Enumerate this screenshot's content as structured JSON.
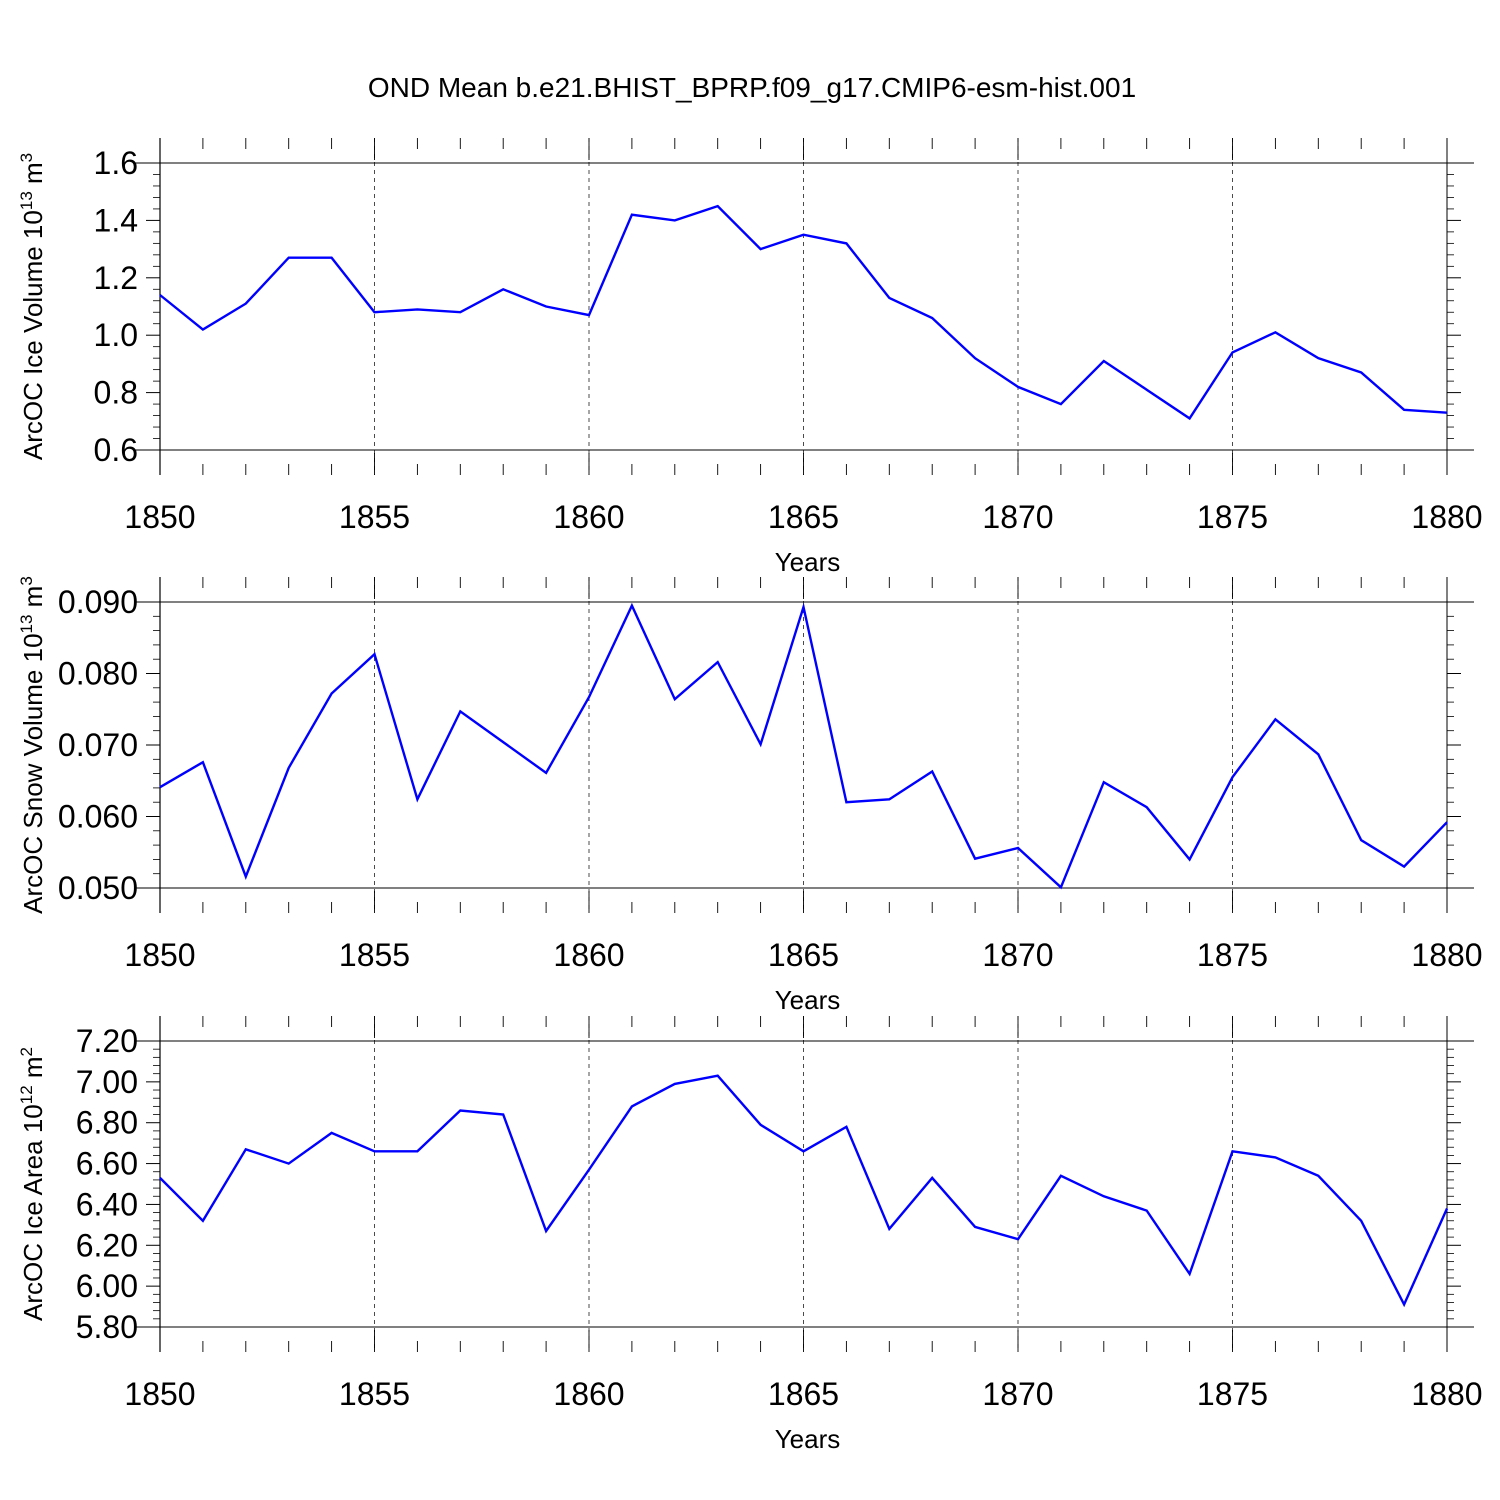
{
  "title": "OND Mean b.e21.BHIST_BPRP.f09_g17.CMIP6-esm-hist.001",
  "colors": {
    "series": "#0000ff",
    "axis": "#000000",
    "grid": "#000000"
  },
  "chart_data": [
    {
      "type": "line",
      "title": "",
      "xlabel": "Years",
      "ylabel": "ArcOC Ice Volume 10",
      "ylabel_exp": "13",
      "ylabel_unit": " m",
      "ylabel_unit_exp": "3",
      "xlim": [
        1850,
        1880
      ],
      "ylim": [
        0.6,
        1.6
      ],
      "yticks": [
        0.6,
        0.8,
        1.0,
        1.2,
        1.4,
        1.6
      ],
      "ytick_labels": [
        "0.6",
        "0.8",
        "1.0",
        "1.2",
        "1.4",
        "1.6"
      ],
      "xticks": [
        1850,
        1855,
        1860,
        1865,
        1870,
        1875,
        1880
      ],
      "xtick_labels": [
        "1850",
        "1855",
        "1860",
        "1865",
        "1870",
        "1875",
        "1880"
      ],
      "grid": "vertical-dashed-at-major-x",
      "x": [
        1850,
        1851,
        1852,
        1853,
        1854,
        1855,
        1856,
        1857,
        1858,
        1859,
        1860,
        1861,
        1862,
        1863,
        1864,
        1865,
        1866,
        1867,
        1868,
        1869,
        1870,
        1871,
        1872,
        1873,
        1874,
        1875,
        1876,
        1877,
        1878,
        1879,
        1880
      ],
      "series": [
        {
          "values": [
            1.14,
            1.02,
            1.11,
            1.27,
            1.27,
            1.08,
            1.09,
            1.08,
            1.16,
            1.1,
            1.07,
            1.42,
            1.4,
            1.45,
            1.3,
            1.35,
            1.32,
            1.13,
            1.06,
            0.92,
            0.82,
            0.76,
            0.91,
            0.81,
            0.71,
            0.94,
            1.01,
            0.92,
            0.87,
            0.74,
            0.73
          ]
        }
      ]
    },
    {
      "type": "line",
      "title": "",
      "xlabel": "Years",
      "ylabel": "ArcOC Snow Volume 10",
      "ylabel_exp": "13",
      "ylabel_unit": " m",
      "ylabel_unit_exp": "3",
      "xlim": [
        1850,
        1880
      ],
      "ylim": [
        0.05,
        0.09
      ],
      "yticks": [
        0.05,
        0.06,
        0.07,
        0.08,
        0.09
      ],
      "ytick_labels": [
        "0.050",
        "0.060",
        "0.070",
        "0.080",
        "0.090"
      ],
      "xticks": [
        1850,
        1855,
        1860,
        1865,
        1870,
        1875,
        1880
      ],
      "xtick_labels": [
        "1850",
        "1855",
        "1860",
        "1865",
        "1870",
        "1875",
        "1880"
      ],
      "grid": "vertical-dashed-at-major-x",
      "x": [
        1850,
        1851,
        1852,
        1853,
        1854,
        1855,
        1856,
        1857,
        1858,
        1859,
        1860,
        1861,
        1862,
        1863,
        1864,
        1865,
        1866,
        1867,
        1868,
        1869,
        1870,
        1871,
        1872,
        1873,
        1874,
        1875,
        1876,
        1877,
        1878,
        1879,
        1880
      ],
      "series": [
        {
          "values": [
            0.0641,
            0.0676,
            0.0516,
            0.0668,
            0.0772,
            0.0827,
            0.0624,
            0.0747,
            0.0704,
            0.0661,
            0.0767,
            0.0895,
            0.0764,
            0.0816,
            0.0701,
            0.0893,
            0.062,
            0.0624,
            0.0663,
            0.0541,
            0.0556,
            0.0501,
            0.0648,
            0.0613,
            0.054,
            0.0655,
            0.0736,
            0.0687,
            0.0567,
            0.053,
            0.0592
          ]
        }
      ]
    },
    {
      "type": "line",
      "title": "",
      "xlabel": "Years",
      "ylabel": "ArcOC Ice Area 10",
      "ylabel_exp": "12",
      "ylabel_unit": " m",
      "ylabel_unit_exp": "2",
      "xlim": [
        1850,
        1880
      ],
      "ylim": [
        5.8,
        7.2
      ],
      "yticks": [
        5.8,
        6.0,
        6.2,
        6.4,
        6.6,
        6.8,
        7.0,
        7.2
      ],
      "ytick_labels": [
        "5.80",
        "6.00",
        "6.20",
        "6.40",
        "6.60",
        "6.80",
        "7.00",
        "7.20"
      ],
      "xticks": [
        1850,
        1855,
        1860,
        1865,
        1870,
        1875,
        1880
      ],
      "xtick_labels": [
        "1850",
        "1855",
        "1860",
        "1865",
        "1870",
        "1875",
        "1880"
      ],
      "grid": "vertical-dashed-at-major-x",
      "x": [
        1850,
        1851,
        1852,
        1853,
        1854,
        1855,
        1856,
        1857,
        1858,
        1859,
        1860,
        1861,
        1862,
        1863,
        1864,
        1865,
        1866,
        1867,
        1868,
        1869,
        1870,
        1871,
        1872,
        1873,
        1874,
        1875,
        1876,
        1877,
        1878,
        1879,
        1880
      ],
      "series": [
        {
          "values": [
            6.53,
            6.32,
            6.67,
            6.6,
            6.75,
            6.66,
            6.66,
            6.86,
            6.84,
            6.27,
            6.57,
            6.88,
            6.99,
            7.03,
            6.79,
            6.66,
            6.78,
            6.28,
            6.53,
            6.29,
            6.23,
            6.54,
            6.44,
            6.37,
            6.06,
            6.66,
            6.63,
            6.54,
            6.32,
            5.91,
            6.38
          ]
        }
      ]
    }
  ]
}
